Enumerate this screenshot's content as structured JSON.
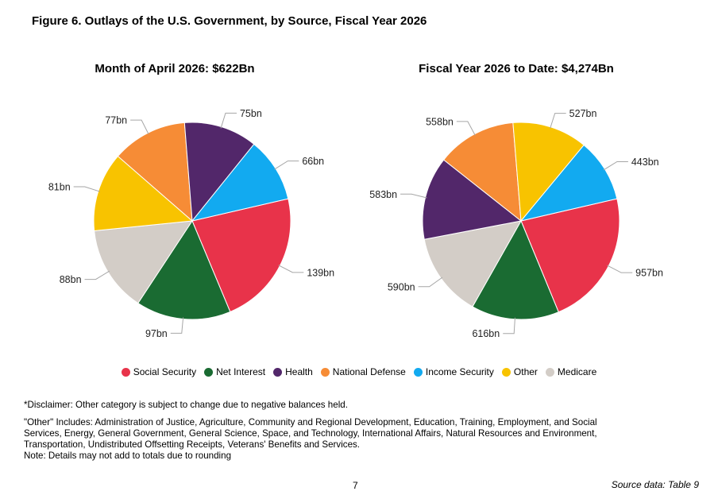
{
  "figure_title": "Figure 6. Outlays of the U.S. Government, by Source, Fiscal Year 2026",
  "chart_data": [
    {
      "type": "pie",
      "title": "Month of April 2026: $622Bn",
      "slices": [
        {
          "name": "Social Security",
          "value": 139,
          "label": "139bn",
          "color": "#e8334a"
        },
        {
          "name": "Net Interest",
          "value": 97,
          "label": "97bn",
          "color": "#1a6b32"
        },
        {
          "name": "Medicare",
          "value": 88,
          "label": "88bn",
          "color": "#d3cdc7"
        },
        {
          "name": "Other",
          "value": 81,
          "label": "81bn",
          "color": "#f8c300"
        },
        {
          "name": "National Defense",
          "value": 77,
          "label": "77bn",
          "color": "#f68c36"
        },
        {
          "name": "Health",
          "value": 75,
          "label": "75bn",
          "color": "#52276a"
        },
        {
          "name": "Income Security",
          "value": 66,
          "label": "66bn",
          "color": "#12aaf0"
        }
      ]
    },
    {
      "type": "pie",
      "title": "Fiscal Year 2026 to Date: $4,274Bn",
      "slices": [
        {
          "name": "Social Security",
          "value": 957,
          "label": "957bn",
          "color": "#e8334a"
        },
        {
          "name": "Net Interest",
          "value": 616,
          "label": "616bn",
          "color": "#1a6b32"
        },
        {
          "name": "Medicare",
          "value": 590,
          "label": "590bn",
          "color": "#d3cdc7"
        },
        {
          "name": "Health",
          "value": 583,
          "label": "583bn",
          "color": "#52276a"
        },
        {
          "name": "National Defense",
          "value": 558,
          "label": "558bn",
          "color": "#f68c36"
        },
        {
          "name": "Other",
          "value": 527,
          "label": "527bn",
          "color": "#f8c300"
        },
        {
          "name": "Income Security",
          "value": 443,
          "label": "443bn",
          "color": "#12aaf0"
        }
      ]
    }
  ],
  "legend": [
    {
      "label": "Social Security",
      "color": "#e8334a"
    },
    {
      "label": "Net Interest",
      "color": "#1a6b32"
    },
    {
      "label": "Health",
      "color": "#52276a"
    },
    {
      "label": "National Defense",
      "color": "#f68c36"
    },
    {
      "label": "Income Security",
      "color": "#12aaf0"
    },
    {
      "label": "Other",
      "color": "#f8c300"
    },
    {
      "label": "Medicare",
      "color": "#d3cdc7"
    }
  ],
  "notes": {
    "disclaimer": "*Disclaimer: Other category is subject to change due to negative balances held.",
    "other_includes": "\"Other\" Includes: Administration of Justice, Agriculture, Community and Regional Development, Education, Training, Employment, and Social Services, Energy, General Government, General Science, Space, and Technology, International Affairs, Natural Resources and Environment, Transportation, Undistributed Offsetting Receipts, Veterans' Benefits and Services.",
    "rounding": "Note: Details may not add to totals due to rounding"
  },
  "footer": {
    "page_number": "7",
    "source": "Source data: Table 9"
  }
}
